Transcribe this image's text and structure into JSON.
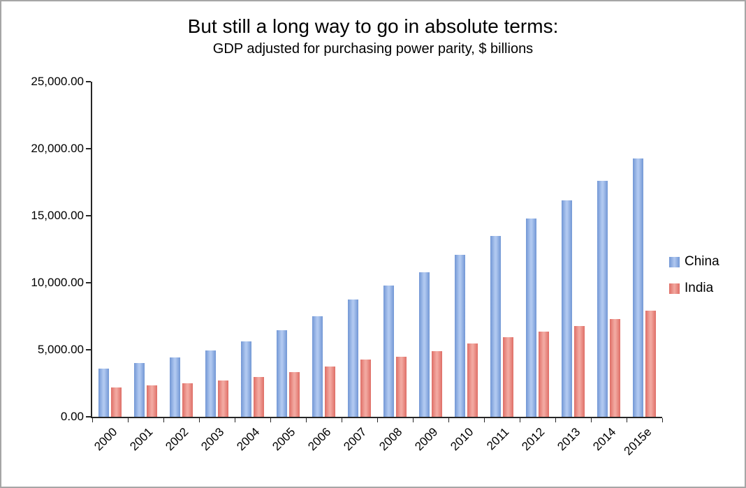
{
  "chart_data": {
    "type": "bar",
    "title": "But still a long way to go in absolute terms:",
    "subtitle": "GDP adjusted for purchasing power parity, $ billions",
    "categories": [
      "2000",
      "2001",
      "2002",
      "2003",
      "2004",
      "2005",
      "2006",
      "2007",
      "2008",
      "2009",
      "2010",
      "2011",
      "2012",
      "2013",
      "2014",
      "2015e"
    ],
    "series": [
      {
        "name": "China",
        "color": "#7297d5",
        "color_light": "#b0c8f0",
        "values": [
          3600,
          4000,
          4450,
          4950,
          5600,
          6450,
          7500,
          8750,
          9800,
          10800,
          12100,
          13500,
          14800,
          16150,
          17600,
          19250
        ]
      },
      {
        "name": "India",
        "color": "#df6e66",
        "color_light": "#f2a8a0",
        "values": [
          2200,
          2350,
          2500,
          2700,
          2950,
          3350,
          3750,
          4250,
          4500,
          4900,
          5450,
          5950,
          6350,
          6750,
          7300,
          7900
        ]
      }
    ],
    "ylim": [
      0,
      25000
    ],
    "y_ticks": [
      {
        "value": 0,
        "label": "0.00"
      },
      {
        "value": 5000,
        "label": "5,000.00"
      },
      {
        "value": 10000,
        "label": "10,000.00"
      },
      {
        "value": 15000,
        "label": "15,000.00"
      },
      {
        "value": 20000,
        "label": "20,000.00"
      },
      {
        "value": 25000,
        "label": "25,000.00"
      }
    ],
    "xlabel": "",
    "ylabel": "",
    "grid": false,
    "legend_position": "right"
  }
}
